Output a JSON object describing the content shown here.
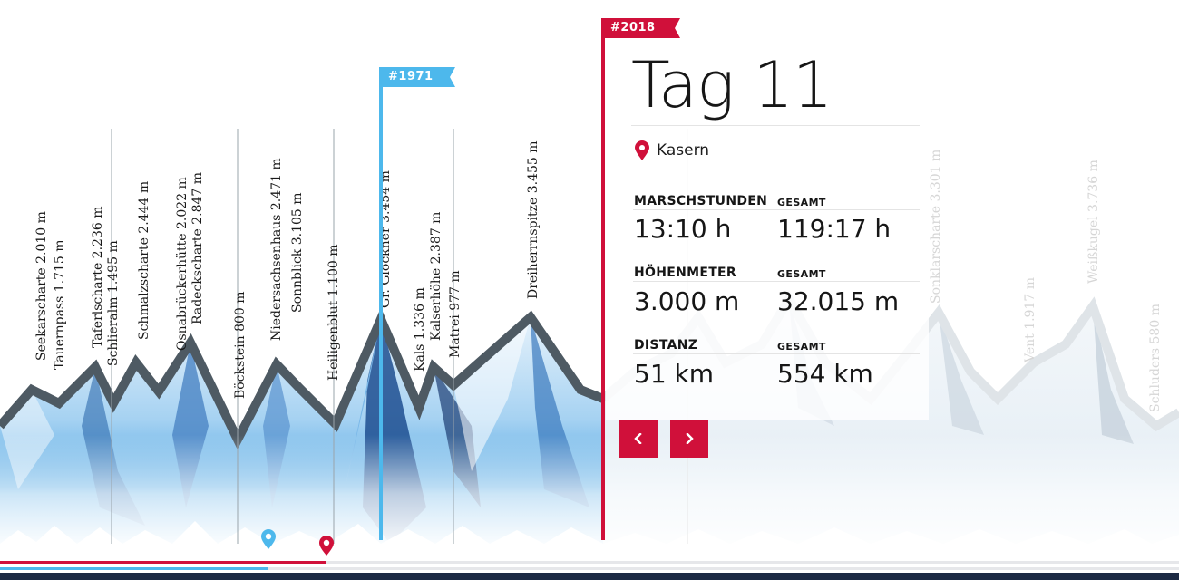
{
  "peaks": [
    "Seekarscharte 2.010 m",
    "Tauernpass 1.715 m",
    "Taferlscharte 2.236 m",
    "Schlieralm 1.495 m",
    "Schmalzscharte 2.444 m",
    "Osnabrückerhütte 2.022 m",
    "Radeckscharte 2.847 m",
    "Böckstein 800 m",
    "Niedersachsenhaus 2.471 m",
    "Sonnblick 3.105 m",
    "Heiligenblut 1.100 m",
    "Gr. Glockner 3.454 m",
    "Kals 1.336 m",
    "Kalserhöhe 2.387 m",
    "Matrei 977 m",
    "Dreiherrnspitze 3.455 m"
  ],
  "faded_peaks": [
    "Sonklarscharte 3.301 m",
    "Weißkugel 3.736 m",
    "Vent 1.917 m",
    "Schluders 580 m"
  ],
  "flags": {
    "current": "#2018",
    "historic": "#1971"
  },
  "day": {
    "title": "Tag 11",
    "location": "Kasern"
  },
  "stats": [
    {
      "label": "MARSCHSTUNDEN",
      "value": "13:10 h",
      "total_label": "GESAMT",
      "total_value": "119:17 h"
    },
    {
      "label": "HÖHENMETER",
      "value": "3.000 m",
      "total_label": "GESAMT",
      "total_value": "32.015 m"
    },
    {
      "label": "DISTANZ",
      "value": "51 km",
      "total_label": "GESAMT",
      "total_value": "554 km"
    }
  ],
  "progress": {
    "historic_fraction": 0.227,
    "current_fraction": 0.277
  },
  "colors": {
    "accent_red": "#d0103a",
    "accent_blue": "#4db8ec",
    "ridge": "#4e5a63",
    "bottom_bar": "#1d2a44"
  }
}
